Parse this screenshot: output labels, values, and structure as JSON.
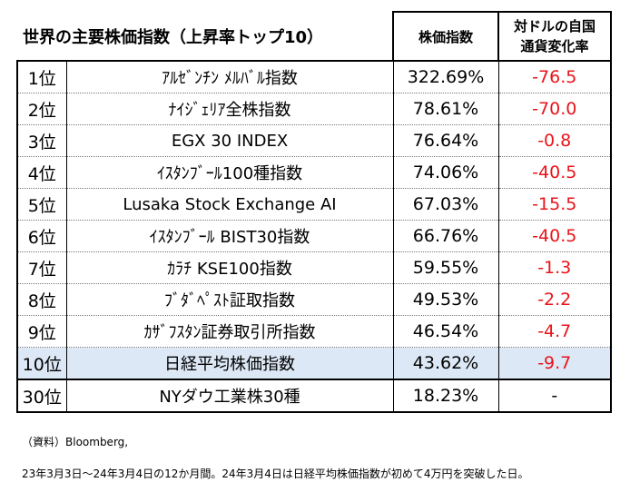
{
  "header": {
    "title": "世界の主要株価指数（上昇率トップ10）",
    "col_index": "株価指数",
    "col_change": [
      "対ドルの自国",
      "通貨変化率"
    ]
  },
  "table": {
    "rows": [
      [
        "1位",
        "ｱﾙｾﾞﾝﾁﾝ ﾒﾙﾊﾞﾙ指数",
        "322.69%",
        "-76.5"
      ],
      [
        "2位",
        "ﾅｲｼﾞｪﾘｱ全株指数",
        "78.61%",
        "-70.0"
      ],
      [
        "3位",
        "EGX 30 INDEX",
        "76.64%",
        "-0.8"
      ],
      [
        "4位",
        "ｲｽﾀﾝﾌﾞｰﾙ100種指数",
        "74.06%",
        "-40.5"
      ],
      [
        "5位",
        "Lusaka Stock Exchange AI",
        "67.03%",
        "-15.5"
      ],
      [
        "6位",
        "ｲｽﾀﾝﾌﾞｰﾙ BIST30指数",
        "66.76%",
        "-40.5"
      ],
      [
        "7位",
        "ｶﾗﾁ KSE100指数",
        "59.55%",
        "-1.3"
      ],
      [
        "8位",
        "ﾌﾞﾀﾞﾍﾟｽﾄ証取指数",
        "49.53%",
        "-2.2"
      ],
      [
        "9位",
        "ｶｻﾞﾌｽﾀﾝ証券取引所指数",
        "46.54%",
        "-4.7"
      ],
      [
        "10位",
        "日経平均株価指数",
        "43.62%",
        "-9.7"
      ]
    ],
    "benchmark": [
      "30位",
      "NYダウ工業株30種",
      "18.23%",
      "-"
    ]
  },
  "notes": [
    "（資料）Bloomberg,",
    "23年3月3日～24年3月4日の12か月間。24年3月4日は日経平均株価指数が初めて4万円を突破した日。"
  ]
}
